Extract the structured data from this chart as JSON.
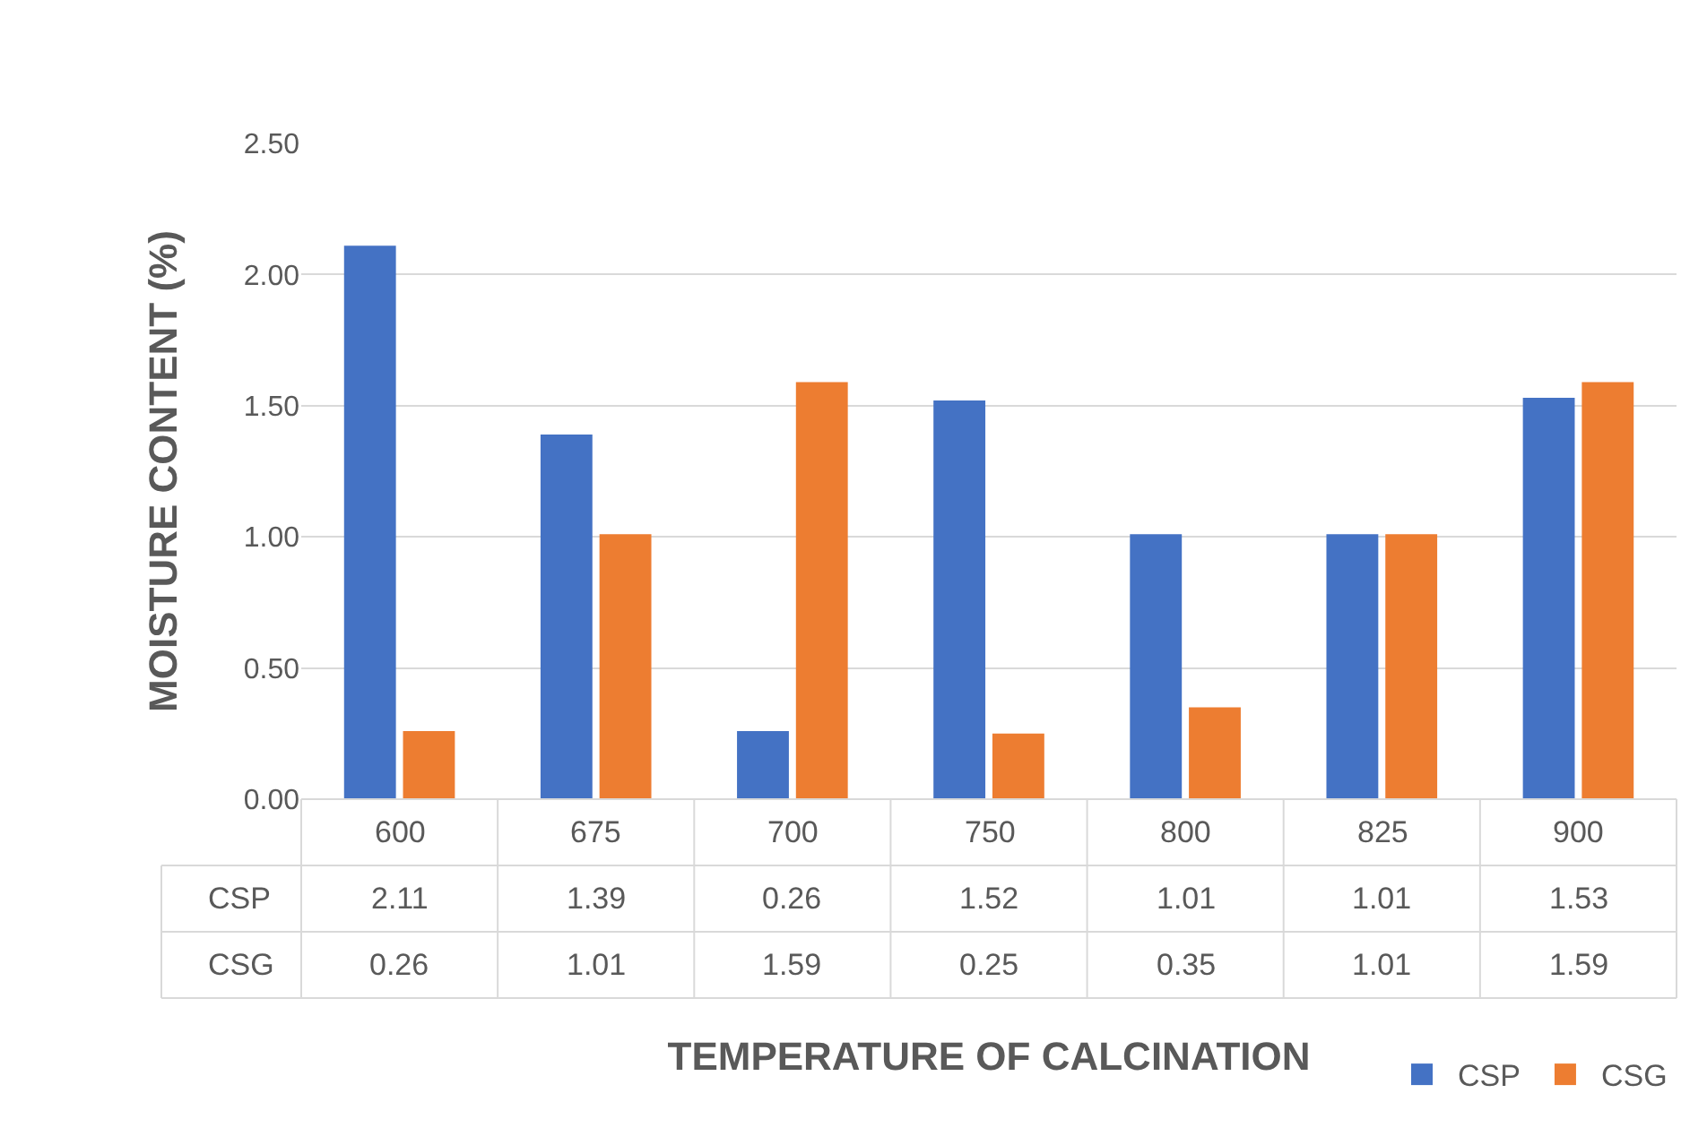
{
  "chart_data": {
    "type": "bar",
    "xlabel": "TEMPERATURE OF CALCINATION",
    "ylabel": "MOISTURE CONTENT (%)",
    "categories": [
      "600",
      "675",
      "700",
      "750",
      "800",
      "825",
      "900"
    ],
    "series": [
      {
        "name": "CSP",
        "color": "#4472c4",
        "values": [
          2.11,
          1.39,
          0.26,
          1.52,
          1.01,
          1.01,
          1.53
        ]
      },
      {
        "name": "CSG",
        "color": "#ed7d31",
        "values": [
          0.26,
          1.01,
          1.59,
          0.25,
          0.35,
          1.01,
          1.59
        ]
      }
    ],
    "ylim": [
      0,
      2.5
    ],
    "yticks": [
      {
        "value": 0,
        "label": "0.00"
      },
      {
        "value": 0.5,
        "label": "0.50"
      },
      {
        "value": 1,
        "label": "1.00"
      },
      {
        "value": 1.5,
        "label": "1.50"
      },
      {
        "value": 2,
        "label": "2.00"
      },
      {
        "value": 2.5,
        "label": "2.50"
      }
    ],
    "grid": "y",
    "legend": "bottom right",
    "data_labels": true
  }
}
